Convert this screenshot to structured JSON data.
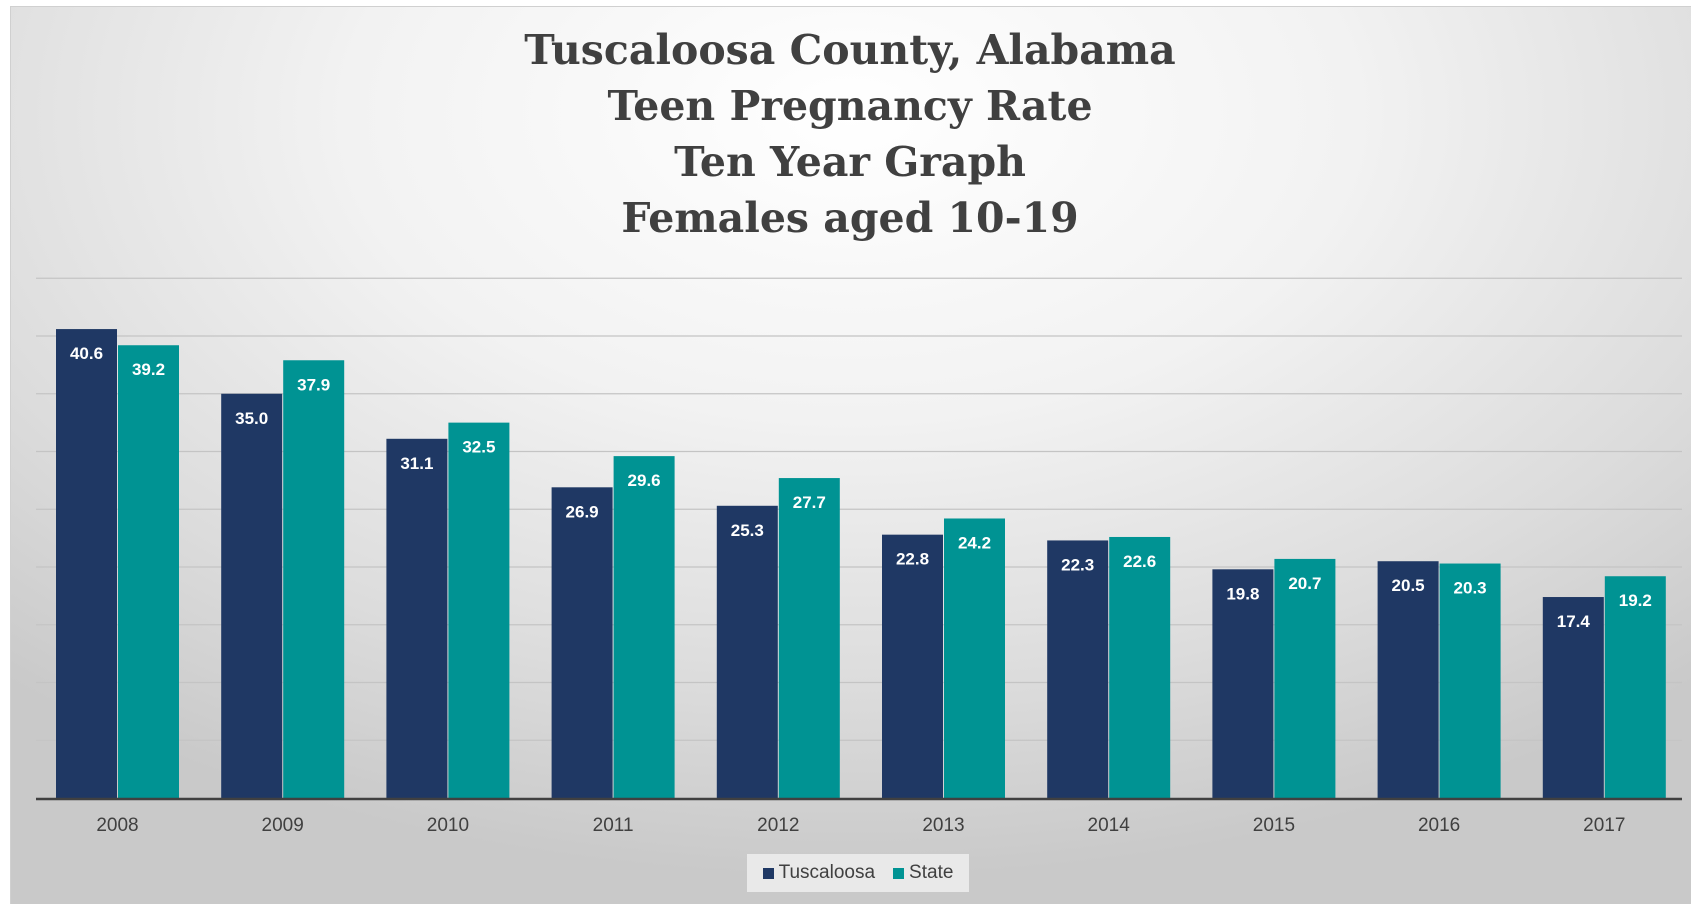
{
  "chart_data": {
    "type": "bar",
    "title_lines": [
      "Tuscaloosa County, Alabama",
      "Teen Pregnancy Rate",
      "Ten Year Graph",
      "Females aged 10-19"
    ],
    "categories": [
      "2008",
      "2009",
      "2010",
      "2011",
      "2012",
      "2013",
      "2014",
      "2015",
      "2016",
      "2017"
    ],
    "series": [
      {
        "name": "Tuscaloosa",
        "color": "#1f3864",
        "values": [
          40.6,
          35.0,
          31.1,
          26.9,
          25.3,
          22.8,
          22.3,
          19.8,
          20.5,
          17.4
        ],
        "labels": [
          "40.6",
          "35.0",
          "31.1",
          "26.9",
          "25.3",
          "22.8",
          "22.3",
          "19.8",
          "20.5",
          "17.4"
        ]
      },
      {
        "name": "State",
        "color": "#009393",
        "values": [
          39.2,
          37.9,
          32.5,
          29.6,
          27.7,
          24.2,
          22.6,
          20.7,
          20.3,
          19.2
        ],
        "labels": [
          "39.2",
          "37.9",
          "32.5",
          "29.6",
          "27.7",
          "24.2",
          "22.6",
          "20.7",
          "20.3",
          "19.2"
        ]
      }
    ],
    "ylim": [
      0,
      45
    ],
    "y_gridline_step": 5,
    "y_tick_labels_shown": false,
    "grid": true,
    "data_labels": "inside-end",
    "legend_position": "bottom"
  }
}
